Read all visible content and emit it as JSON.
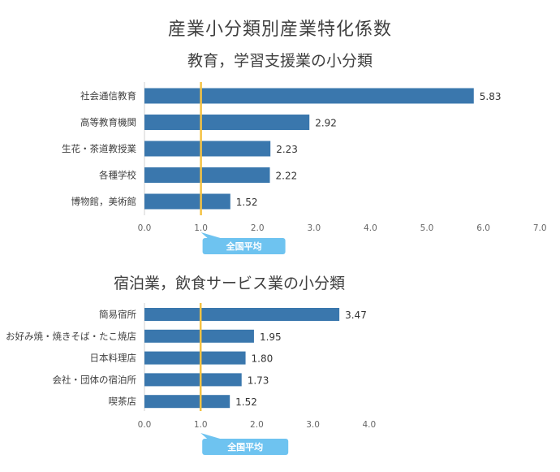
{
  "title": "産業小分類別産業特化係数",
  "average_label": "全国平均",
  "colors": {
    "bar": "#3a77ad",
    "average_line": "#f5c242",
    "average_badge": "#6ec3f0"
  },
  "chart_data": [
    {
      "type": "bar",
      "orientation": "horizontal",
      "title": "教育，学習支援業の小分類",
      "categories": [
        "社会通信教育",
        "高等教育機関",
        "生花・茶道教授業",
        "各種学校",
        "博物館，美術館"
      ],
      "values": [
        5.83,
        2.92,
        2.23,
        2.22,
        1.52
      ],
      "value_labels": [
        "5.83",
        "2.92",
        "2.23",
        "2.22",
        "1.52"
      ],
      "xlim": [
        0,
        7
      ],
      "xticks": [
        "0.0",
        "1.0",
        "2.0",
        "3.0",
        "4.0",
        "5.0",
        "6.0",
        "7.0"
      ],
      "reference_line": 1.0,
      "grid": false
    },
    {
      "type": "bar",
      "orientation": "horizontal",
      "title": "宿泊業，飲食サービス業の小分類",
      "categories": [
        "簡易宿所",
        "お好み焼・焼きそば・たこ焼店",
        "日本料理店",
        "会社・団体の宿泊所",
        "喫茶店"
      ],
      "values": [
        3.47,
        1.95,
        1.8,
        1.73,
        1.52
      ],
      "value_labels": [
        "3.47",
        "1.95",
        "1.80",
        "1.73",
        "1.52"
      ],
      "xlim": [
        0,
        4
      ],
      "xticks": [
        "0.0",
        "1.0",
        "2.0",
        "3.0",
        "4.0"
      ],
      "reference_line": 1.0,
      "grid": false
    }
  ]
}
